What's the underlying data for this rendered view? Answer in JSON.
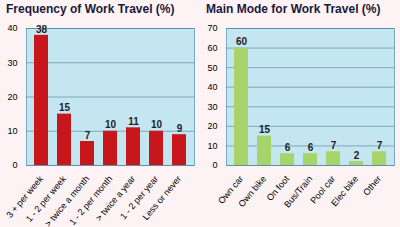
{
  "chart_data": [
    {
      "type": "bar",
      "title": "Frequency of Work Travel (%)",
      "categories": [
        "3 + per week",
        "1 - 2 per week",
        "> twice a month",
        "1 - 2 per month",
        "> twice a year",
        "1 - 2 per year",
        "Less or never"
      ],
      "values": [
        38,
        15,
        7,
        10,
        11,
        10,
        9
      ],
      "color": "#c8161d",
      "ylim": [
        0,
        40
      ],
      "yticks": [
        0,
        10,
        20,
        30,
        40
      ],
      "grid": true,
      "data_labels": true
    },
    {
      "type": "bar",
      "title": "Main Mode for Work Travel (%)",
      "categories": [
        "Own car",
        "Own bike",
        "On foot",
        "Bus/Train",
        "Pool car",
        "Elec bike",
        "Other"
      ],
      "values": [
        60,
        15,
        6,
        6,
        7,
        2,
        7
      ],
      "color": "#a6d46a",
      "ylim": [
        0,
        70
      ],
      "yticks": [
        0,
        10,
        20,
        30,
        40,
        50,
        60,
        70
      ],
      "grid": true,
      "data_labels": true
    }
  ]
}
